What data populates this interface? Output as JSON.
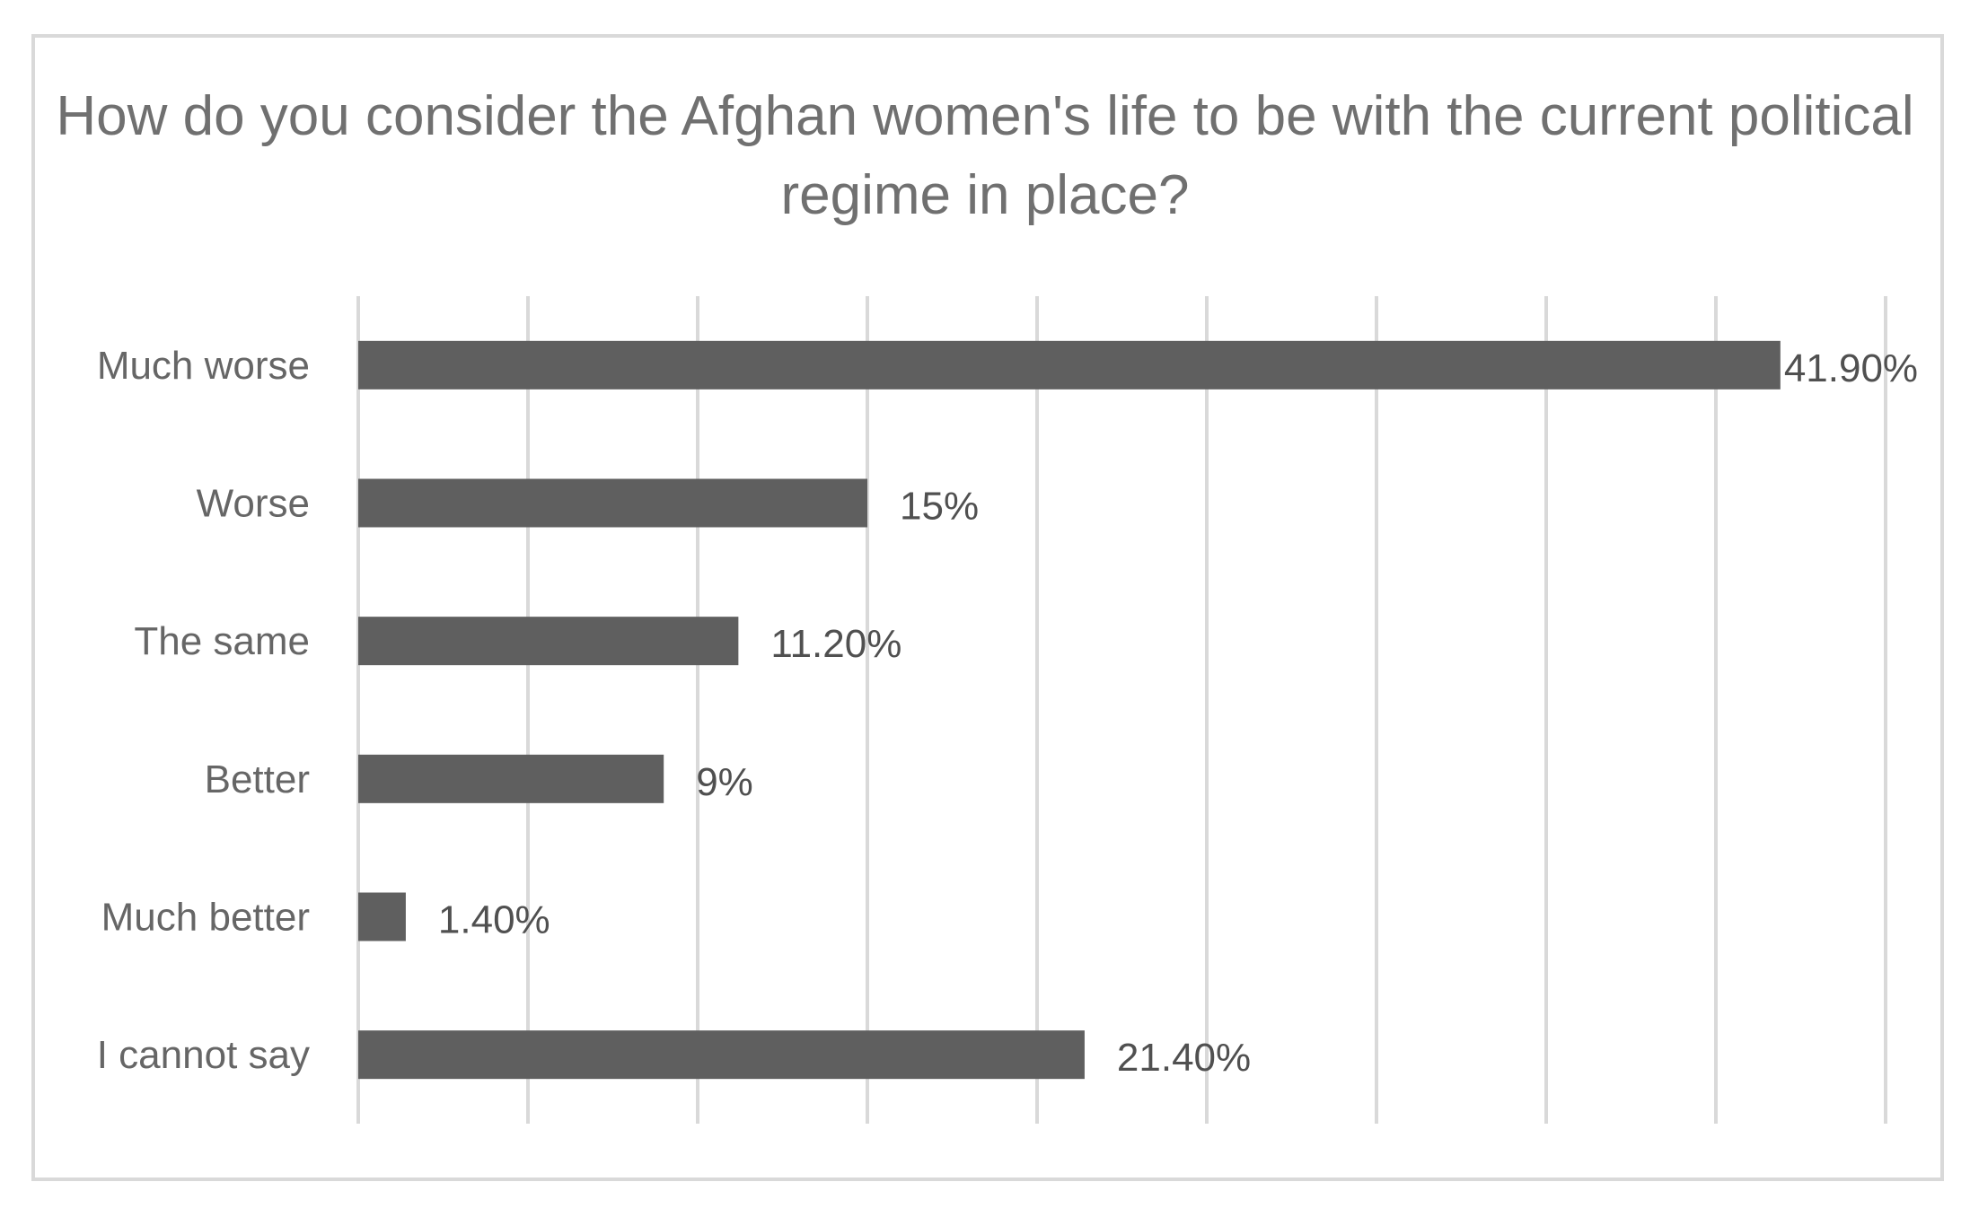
{
  "chart_data": {
    "type": "bar",
    "orientation": "horizontal",
    "title": "How do you consider the Afghan women's life to be with the current political regime in place?",
    "xlabel": "",
    "ylabel": "",
    "categories": [
      "Much worse",
      "Worse",
      "The same",
      "Better",
      "Much better",
      "I cannot say"
    ],
    "values": [
      41.9,
      15,
      11.2,
      9,
      1.4,
      21.4
    ],
    "data_labels": [
      "41.90%",
      "15%",
      "11.20%",
      "9%",
      "1.40%",
      "21.40%"
    ],
    "xlim": [
      0,
      45
    ],
    "x_gridline_step": 5,
    "grid": true,
    "legend": "none",
    "bar_color": "#5f5f5f",
    "grid_color": "#d9d9d9",
    "text_color": "#707070"
  }
}
